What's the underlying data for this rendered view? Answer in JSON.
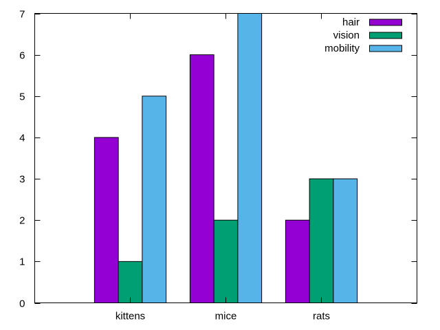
{
  "chart_data": {
    "type": "bar",
    "title": "",
    "xlabel": "",
    "ylabel": "",
    "categories": [
      "kittens",
      "mice",
      "rats"
    ],
    "series": [
      {
        "name": "hair",
        "color": "#9400d3",
        "values": [
          4,
          6,
          2
        ]
      },
      {
        "name": "vision",
        "color": "#009e73",
        "values": [
          1,
          2,
          3
        ]
      },
      {
        "name": "mobility",
        "color": "#56b4e9",
        "values": [
          5,
          7,
          3
        ]
      }
    ],
    "ylim": [
      0,
      7
    ],
    "yticks": [
      0,
      1,
      2,
      3,
      4,
      5,
      6,
      7
    ],
    "grid": false,
    "legend_position": "top-right"
  }
}
